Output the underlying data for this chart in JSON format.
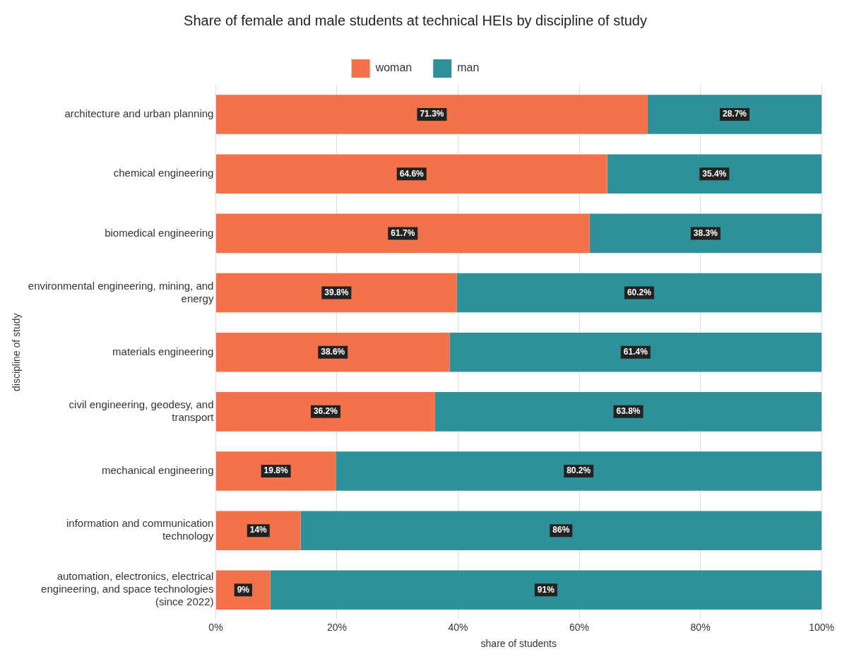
{
  "chart_data": {
    "type": "bar",
    "orientation": "horizontal",
    "stacked": true,
    "title": "Share of female and male students at technical HEIs by discipline of study",
    "xlabel": "share of students",
    "ylabel": "discipline of study",
    "categories": [
      "architecture and urban planning",
      "chemical engineering",
      "biomedical engineering",
      "environmental engineering, mining, and energy",
      "materials engineering",
      "civil engineering, geodesy, and transport",
      "mechanical engineering",
      "information and communication technology",
      "automation, electronics, electrical engineering, and space technologies (since 2022)"
    ],
    "series": [
      {
        "name": "woman",
        "color": "#f47249",
        "values": [
          71.3,
          64.6,
          61.7,
          39.8,
          38.6,
          36.2,
          19.8,
          14,
          9
        ],
        "value_labels": [
          "71.3%",
          "64.6%",
          "61.7%",
          "39.8%",
          "38.6%",
          "36.2%",
          "19.8%",
          "14%",
          "9%"
        ]
      },
      {
        "name": "man",
        "color": "#2e9199",
        "values": [
          28.7,
          35.4,
          38.3,
          60.2,
          61.4,
          63.8,
          80.2,
          86,
          91
        ],
        "value_labels": [
          "28.7%",
          "35.4%",
          "38.3%",
          "60.2%",
          "61.4%",
          "63.8%",
          "80.2%",
          "86%",
          "91%"
        ]
      }
    ],
    "xlim": [
      0,
      100
    ],
    "xticks": [
      {
        "value": 0,
        "label": "0%"
      },
      {
        "value": 20,
        "label": "20%"
      },
      {
        "value": 40,
        "label": "40%"
      },
      {
        "value": 60,
        "label": "60%"
      },
      {
        "value": 80,
        "label": "80%"
      },
      {
        "value": 100,
        "label": "100%"
      }
    ],
    "grid": "x",
    "legend": "top"
  }
}
